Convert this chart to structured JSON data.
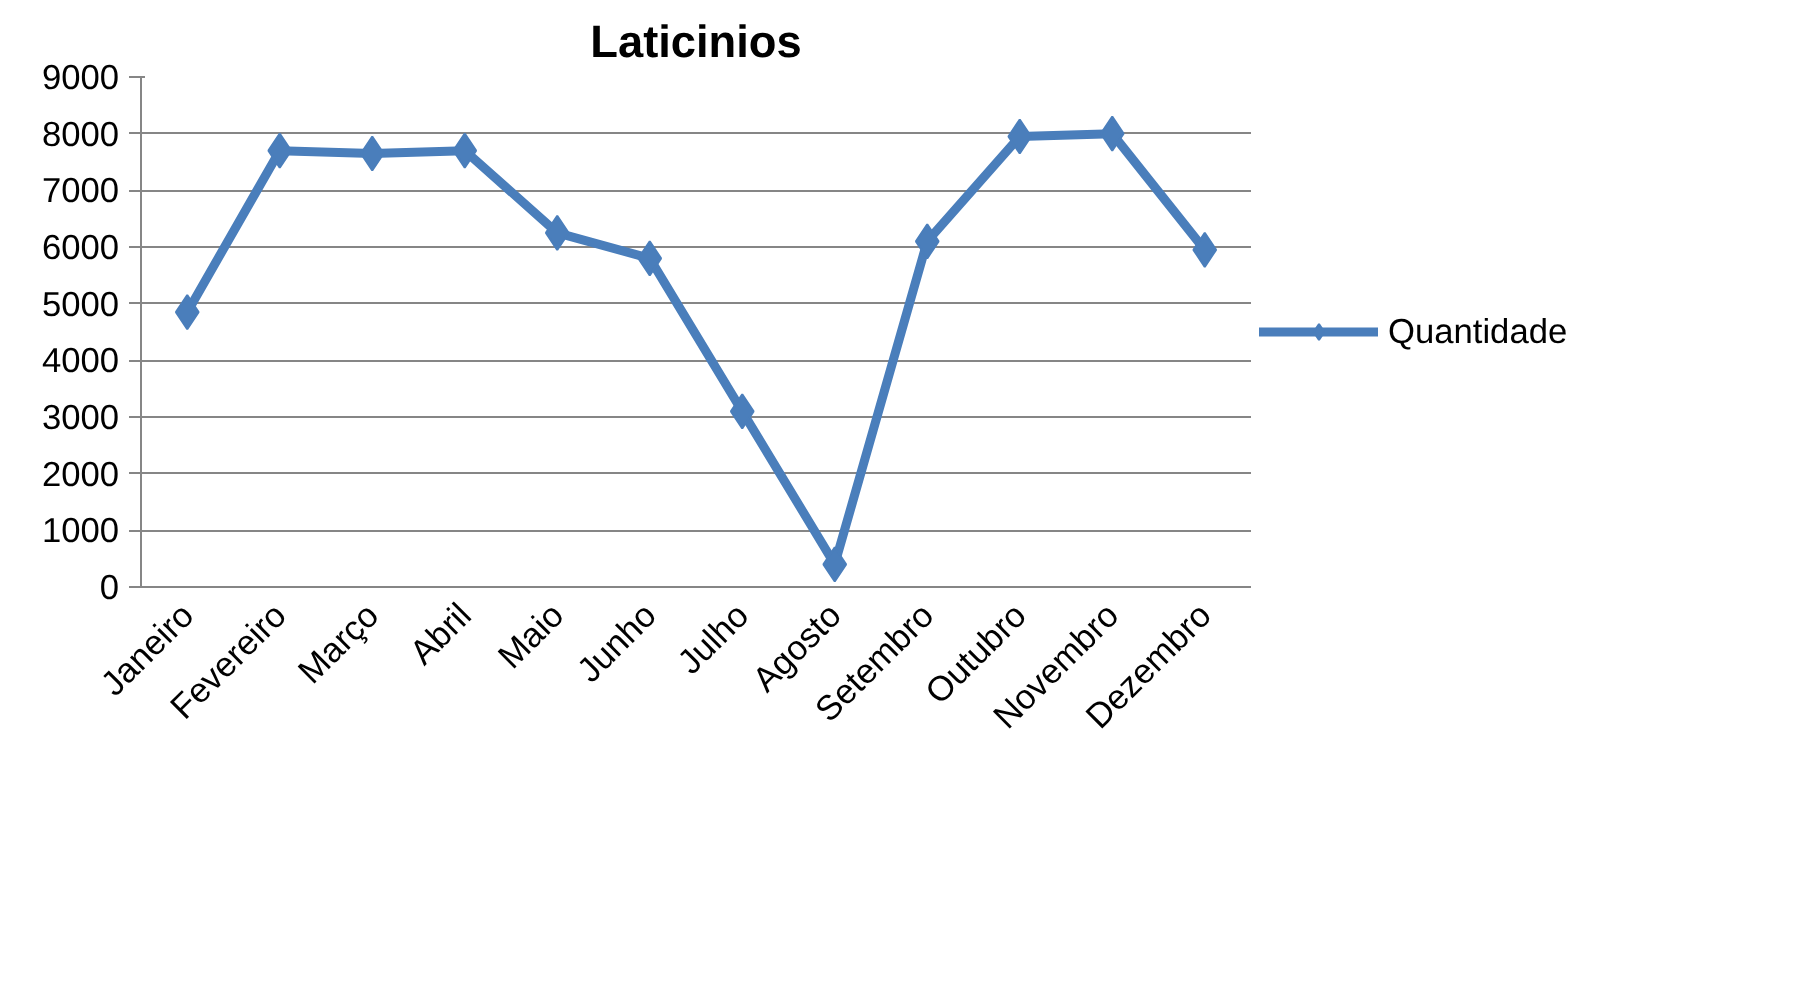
{
  "chart_data": {
    "type": "line",
    "title": "Laticinios",
    "categories": [
      "Janeiro",
      "Fevereiro",
      "Março",
      "Abril",
      "Maio",
      "Junho",
      "Julho",
      "Agosto",
      "Setembro",
      "Outubro",
      "Novembro",
      "Dezembro"
    ],
    "series": [
      {
        "name": "Quantidade",
        "color": "#4a7ebb",
        "values": [
          4850,
          7700,
          7650,
          7700,
          6250,
          5800,
          3100,
          400,
          6100,
          7950,
          8000,
          5950
        ]
      }
    ],
    "ylim": [
      0,
      9000
    ],
    "yticks": [
      0,
      1000,
      2000,
      3000,
      4000,
      5000,
      6000,
      7000,
      8000,
      9000
    ],
    "grid": "y",
    "legend": "right",
    "marker": "diamond",
    "line_style": "solid"
  }
}
